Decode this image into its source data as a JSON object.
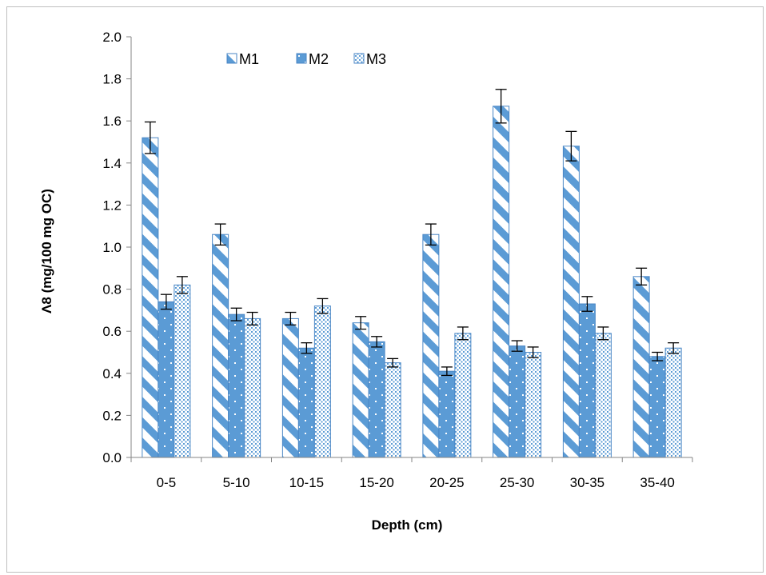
{
  "chart_data": {
    "type": "bar",
    "title": "",
    "xlabel": "Depth (cm)",
    "ylabel": "Λ8 (mg/100 mg OC)",
    "ylim": [
      0,
      2.0
    ],
    "yticks": [
      "0.0",
      "0.2",
      "0.4",
      "0.6",
      "0.8",
      "1.0",
      "1.2",
      "1.4",
      "1.6",
      "1.8",
      "2.0"
    ],
    "categories": [
      "0-5",
      "5-10",
      "10-15",
      "15-20",
      "20-25",
      "25-30",
      "30-35",
      "35-40"
    ],
    "series": [
      {
        "name": "M1",
        "values": [
          1.52,
          1.06,
          0.66,
          0.64,
          1.06,
          1.67,
          1.48,
          0.86
        ],
        "errors": [
          0.075,
          0.05,
          0.03,
          0.03,
          0.05,
          0.08,
          0.07,
          0.04
        ]
      },
      {
        "name": "M2",
        "values": [
          0.74,
          0.68,
          0.52,
          0.55,
          0.41,
          0.53,
          0.73,
          0.48
        ],
        "errors": [
          0.035,
          0.03,
          0.025,
          0.025,
          0.02,
          0.025,
          0.035,
          0.02
        ]
      },
      {
        "name": "M3",
        "values": [
          0.82,
          0.66,
          0.72,
          0.45,
          0.59,
          0.5,
          0.59,
          0.52
        ],
        "errors": [
          0.04,
          0.03,
          0.035,
          0.02,
          0.03,
          0.025,
          0.03,
          0.025
        ]
      }
    ],
    "grid": false,
    "legend_position": "top-left",
    "colors": {
      "bar": "#5b9bd5",
      "bar_outline": "#4a86c5",
      "axis": "#868686",
      "error": "#000000"
    }
  }
}
